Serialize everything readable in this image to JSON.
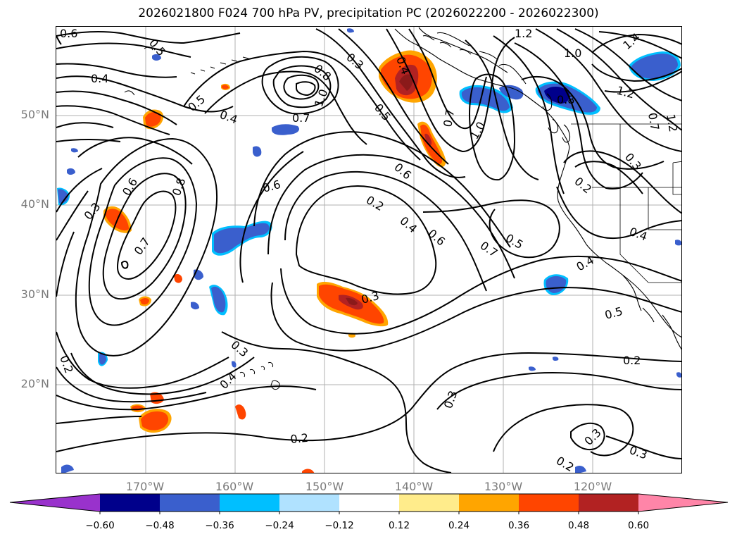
{
  "title": "2026021800 F024 700 hPa PV, precipitation PC (2026022200 - 2026022300)",
  "latitude_labels": [
    "50°N",
    "40°N",
    "30°N",
    "20°N"
  ],
  "longitude_labels": [
    "170°W",
    "160°W",
    "150°W",
    "140°W",
    "130°W",
    "120°W"
  ],
  "pv_contour_labels": [
    "0.6",
    "0.5",
    "0.4",
    "0.5",
    "0.4",
    "0.8",
    "1.0",
    "0.7",
    "0.3",
    "0.4",
    "0.5",
    "1.2",
    "1.0",
    "1.4",
    "1.2",
    "0.8",
    "0.7",
    "1.0",
    "0.6",
    "0.6",
    "0.8",
    "0.6",
    "0.3",
    "0.7",
    "0.2",
    "0.4",
    "0.6",
    "0.7",
    "0.5",
    "0.2",
    "0.3",
    "0.4",
    "0.4",
    "0.3",
    "0.3",
    "0.4",
    "0.5",
    "0.2",
    "0.3",
    "0.2",
    "0.3",
    "0.3",
    "0.2",
    "0.2",
    "1.2",
    "0.7"
  ],
  "colorbar": {
    "ticks": [
      "−0.60",
      "−0.48",
      "−0.36",
      "−0.24",
      "−0.12",
      "0.12",
      "0.24",
      "0.36",
      "0.48",
      "0.60"
    ],
    "colors": [
      "#9932cc",
      "#00008b",
      "#3a5fcd",
      "#00bfff",
      "#b0e2ff",
      "#ffffff",
      "#ffec8b",
      "#ffa500",
      "#ff4500",
      "#b22222",
      "#ff85a8"
    ]
  }
}
